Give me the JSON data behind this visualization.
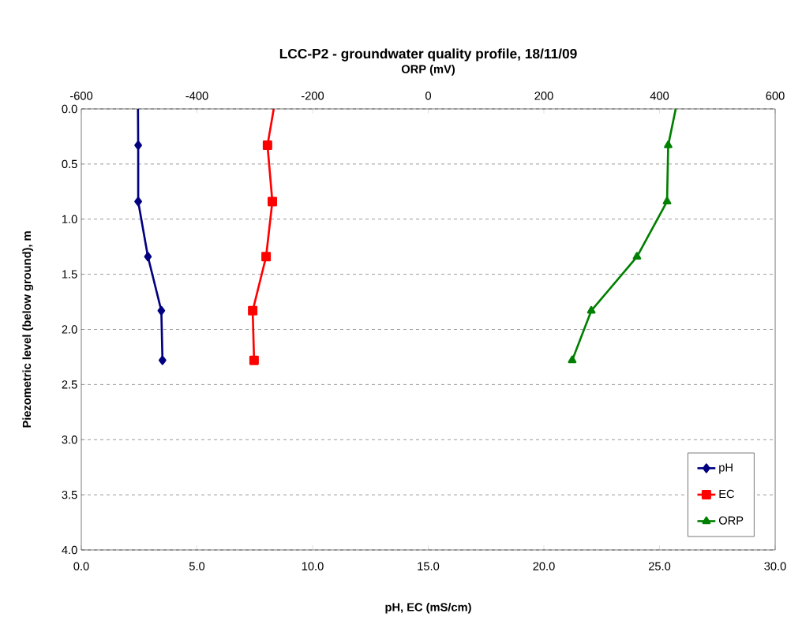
{
  "chart_data": {
    "type": "line",
    "title": "LCC-P2 - groundwater quality profile, 18/11/09",
    "xlabel": "pH, EC (mS/cm)",
    "x2label": "ORP (mV)",
    "ylabel": "Piezometric level (below ground), m",
    "series": [
      {
        "name": "pH",
        "color": "#000080",
        "marker": "diamond",
        "x": [
          2.45,
          2.46,
          2.46,
          2.88,
          3.46,
          3.51
        ],
        "values": [
          0,
          0.33,
          0.84,
          1.34,
          1.83,
          2.28
        ]
      },
      {
        "name": "EC",
        "color": "#ff0000",
        "marker": "square",
        "x": [
          8.32,
          8.05,
          8.26,
          7.99,
          7.41,
          7.47
        ],
        "values": [
          0,
          0.33,
          0.84,
          1.34,
          1.83,
          2.28
        ]
      },
      {
        "name": "ORP",
        "color": "#008000",
        "marker": "triangle",
        "axis": "x2",
        "x": [
          428,
          415,
          413,
          361,
          282,
          249
        ],
        "values": [
          0,
          0.33,
          0.84,
          1.34,
          1.83,
          2.28
        ]
      }
    ],
    "xlim": [
      0,
      30
    ],
    "xticks": [
      {
        "value": 0,
        "label": "0.0"
      },
      {
        "value": 5,
        "label": "5.0"
      },
      {
        "value": 10,
        "label": "10.0"
      },
      {
        "value": 15,
        "label": "15.0"
      },
      {
        "value": 20,
        "label": "20.0"
      },
      {
        "value": 25,
        "label": "25.0"
      },
      {
        "value": 30,
        "label": "30.0"
      }
    ],
    "x2lim": [
      -600,
      600
    ],
    "x2ticks": [
      -600,
      -400,
      -200,
      0,
      200,
      400,
      600
    ],
    "ylim": [
      4,
      0
    ],
    "yticks": [
      {
        "value": 0,
        "label": "0.0"
      },
      {
        "value": 0.5,
        "label": "0.5"
      },
      {
        "value": 1,
        "label": "1.0"
      },
      {
        "value": 1.5,
        "label": "1.5"
      },
      {
        "value": 2,
        "label": "2.0"
      },
      {
        "value": 2.5,
        "label": "2.5"
      },
      {
        "value": 3,
        "label": "3.0"
      },
      {
        "value": 3.5,
        "label": "3.5"
      },
      {
        "value": 4,
        "label": "4.0"
      }
    ],
    "grid": "y",
    "legend": "bottom right",
    "line_style": "solid"
  }
}
